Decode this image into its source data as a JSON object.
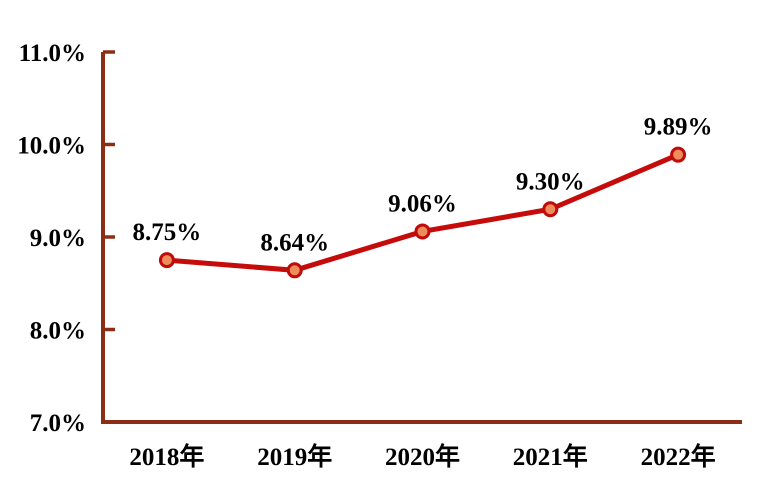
{
  "chart_data": {
    "type": "line",
    "title": "",
    "xlabel": "",
    "ylabel": "",
    "categories": [
      "2018年",
      "2019年",
      "2020年",
      "2021年",
      "2022年"
    ],
    "series": [
      {
        "name": "rate",
        "values": [
          8.75,
          8.64,
          9.06,
          9.3,
          9.89
        ],
        "point_labels": [
          "8.75%",
          "8.64%",
          "9.06%",
          "9.30%",
          "9.89%"
        ]
      }
    ],
    "ylim": [
      7.0,
      11.0
    ],
    "ytick_values": [
      7.0,
      8.0,
      9.0,
      10.0,
      11.0
    ],
    "ytick_labels": [
      "7.0%",
      "8.0%",
      "9.0%",
      "10.0%",
      "11.0%"
    ],
    "grid": false,
    "legend_position": "none",
    "colors": {
      "line": "#C60B0B",
      "marker_fill": "#EE8C5C",
      "marker_stroke": "#C00B0B",
      "axis": "#8B2E16",
      "text": "#000000",
      "background": "#FFFFFF"
    }
  }
}
